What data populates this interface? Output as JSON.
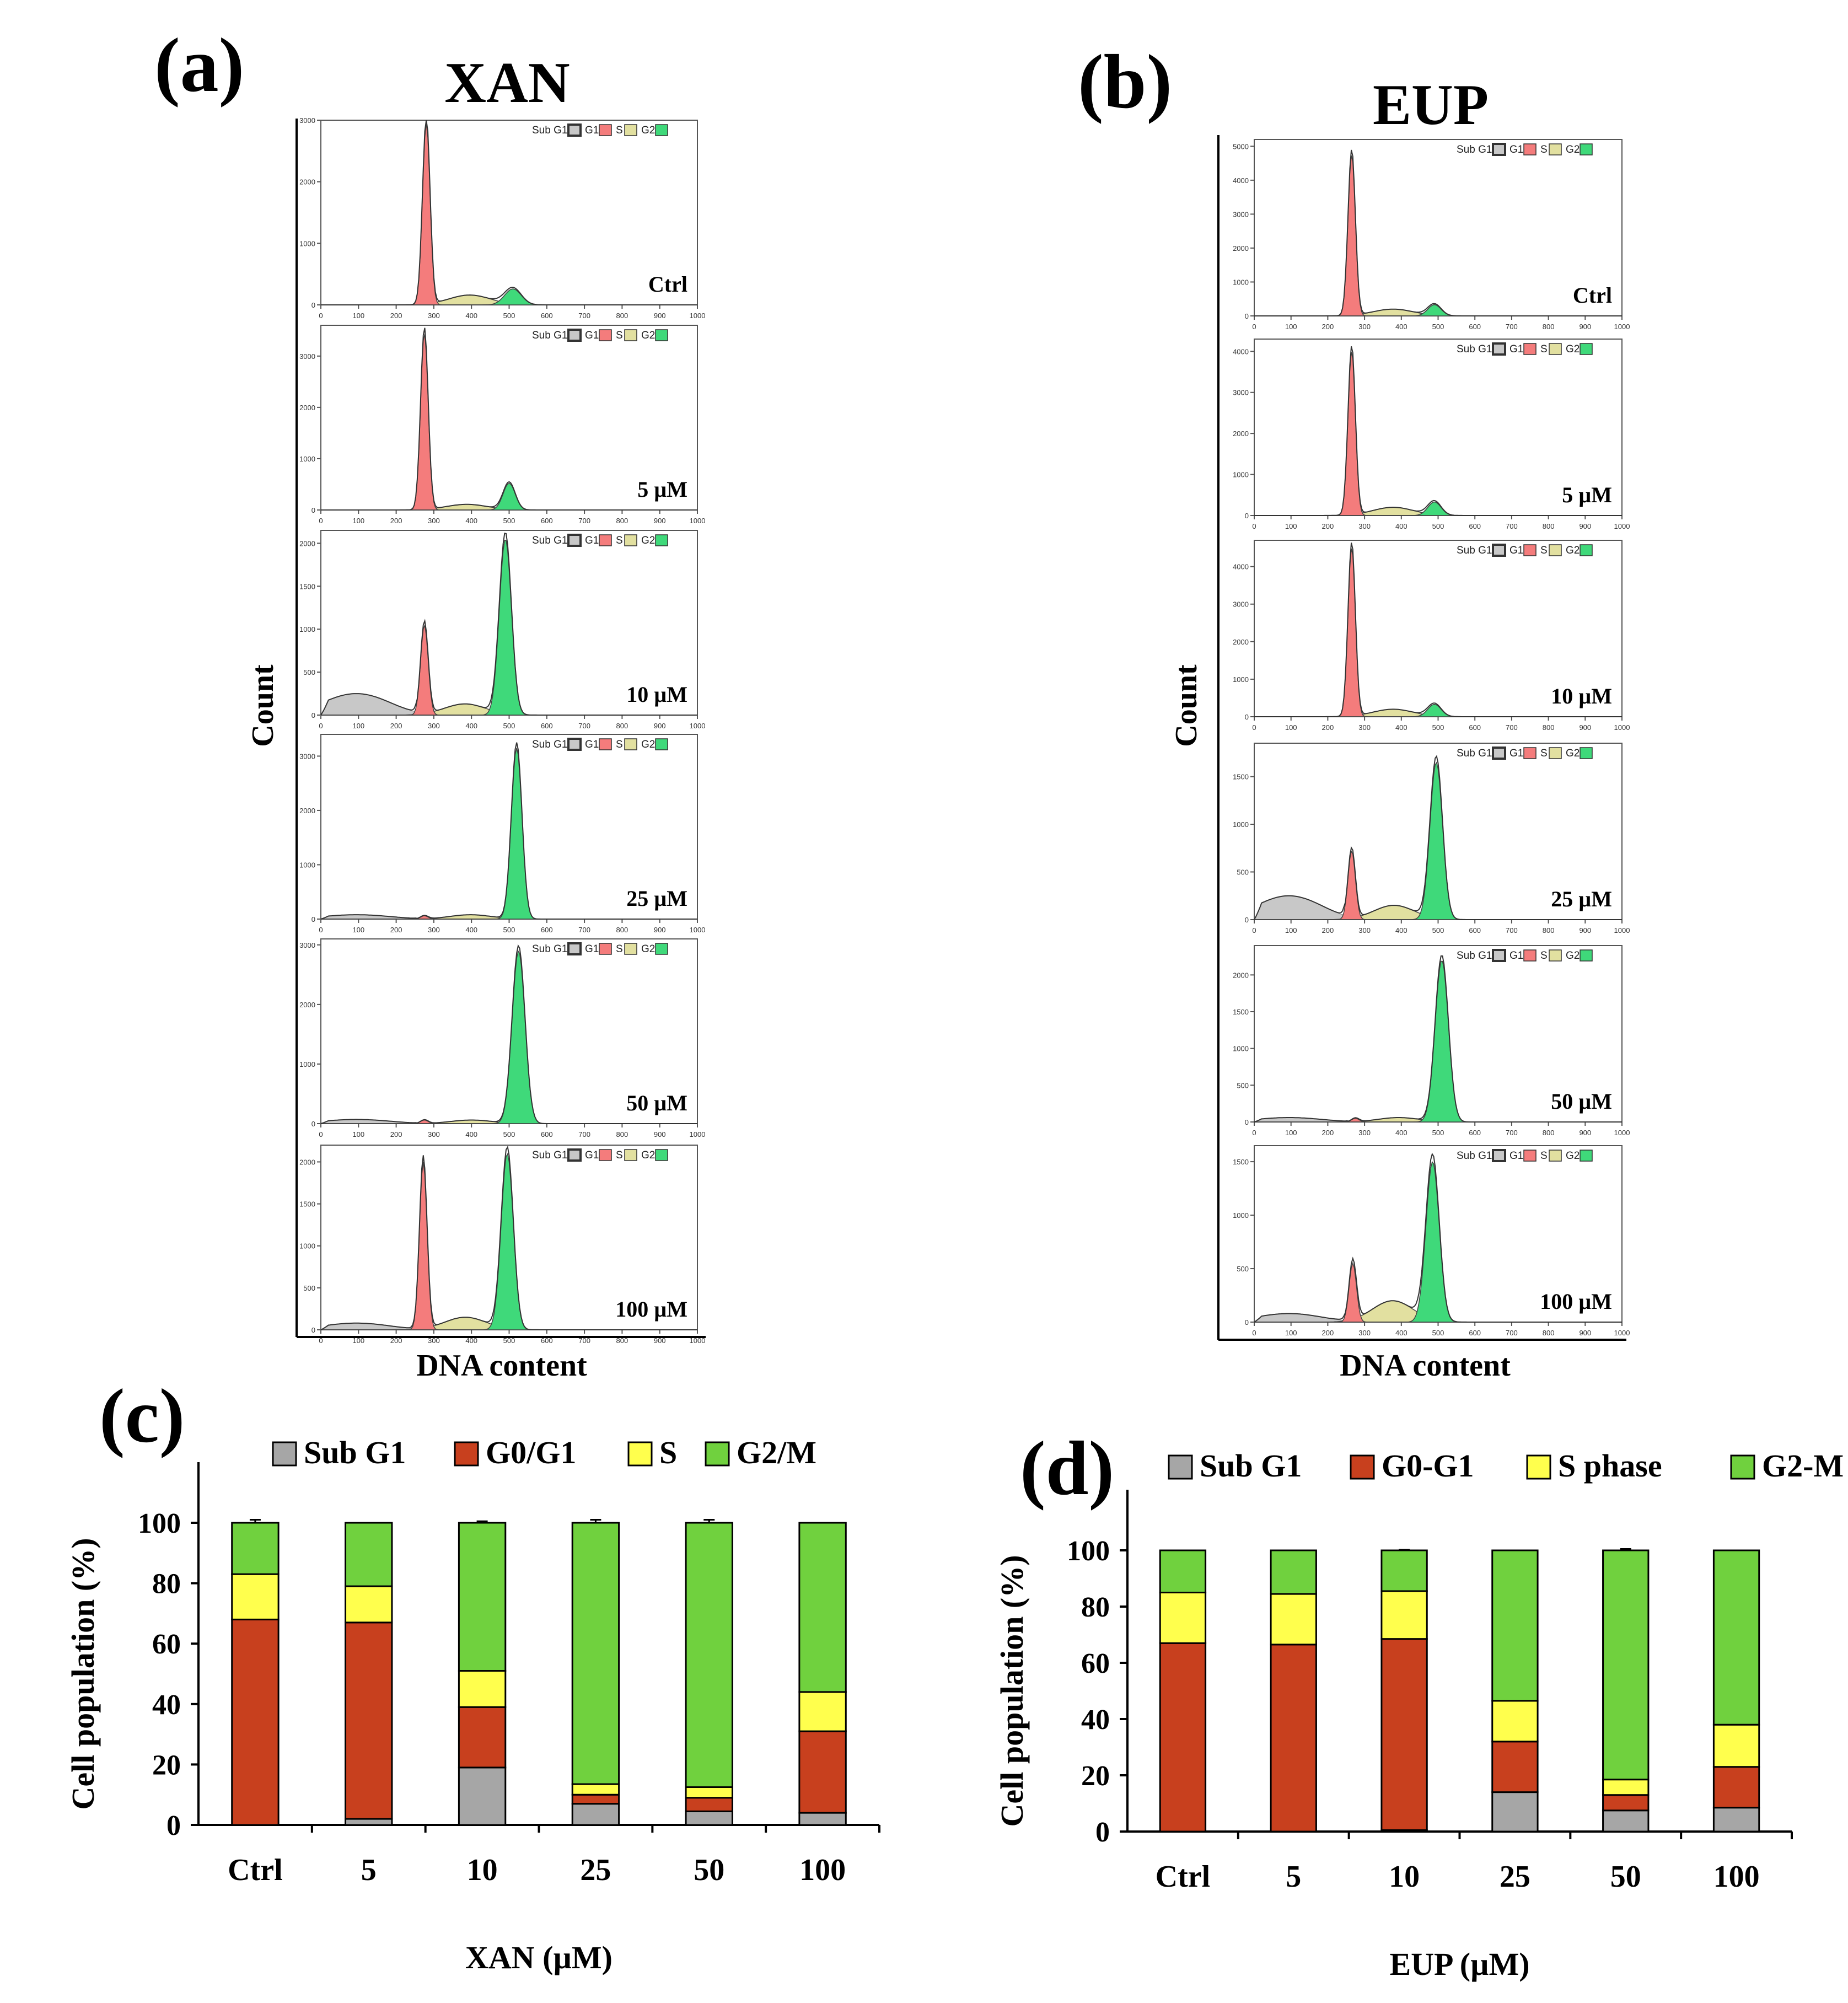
{
  "panels": {
    "a": {
      "letter": "(a)",
      "title": "XAN",
      "ylabel": "Count",
      "xlabel": "DNA content",
      "legend": [
        "Sub G1",
        "G1",
        "S",
        "G2"
      ],
      "x_ticks": [
        "0",
        "100",
        "200",
        "300",
        "400",
        "500",
        "600",
        "700",
        "800",
        "900",
        "1000"
      ],
      "histograms": [
        {
          "label": "Ctrl",
          "y_ticks": [
            "0",
            "1000",
            "2000",
            "3000"
          ],
          "ymax": 3000,
          "g1_peak": 2950,
          "g2_peak": 260,
          "s_level": 160,
          "subg1_level": 0,
          "g1_center": 280,
          "g2_center": 510,
          "g2_sigma": 22
        },
        {
          "label": "5 µM",
          "y_ticks": [
            "0",
            "1000",
            "2000",
            "3000"
          ],
          "ymax": 3600,
          "g1_peak": 3450,
          "g2_peak": 520,
          "s_level": 110,
          "subg1_level": 0,
          "g1_center": 275,
          "g2_center": 500,
          "g2_sigma": 16
        },
        {
          "label": "10 µM",
          "y_ticks": [
            "0",
            "500",
            "1000",
            "1500",
            "2000"
          ],
          "ymax": 2150,
          "g1_peak": 1050,
          "g2_peak": 2050,
          "s_level": 130,
          "subg1_level": 250,
          "g1_center": 275,
          "g2_center": 490,
          "g2_sigma": 16
        },
        {
          "label": "25 µM",
          "y_ticks": [
            "0",
            "1000",
            "2000",
            "3000"
          ],
          "ymax": 3400,
          "g1_peak": 60,
          "g2_peak": 3150,
          "s_level": 80,
          "subg1_level": 80,
          "g1_center": 275,
          "g2_center": 520,
          "g2_sigma": 14
        },
        {
          "label": "50 µM",
          "y_ticks": [
            "0",
            "1000",
            "2000",
            "3000"
          ],
          "ymax": 3100,
          "g1_peak": 60,
          "g2_peak": 2900,
          "s_level": 60,
          "subg1_level": 70,
          "g1_center": 275,
          "g2_center": 525,
          "g2_sigma": 17
        },
        {
          "label": "100 µM",
          "y_ticks": [
            "0",
            "500",
            "1000",
            "1500",
            "2000"
          ],
          "ymax": 2200,
          "g1_peak": 2000,
          "g2_peak": 2100,
          "s_level": 150,
          "subg1_level": 80,
          "g1_center": 272,
          "g2_center": 495,
          "g2_sigma": 16
        }
      ]
    },
    "b": {
      "letter": "(b)",
      "title": "EUP",
      "ylabel": "Count",
      "xlabel": "DNA content",
      "legend": [
        "Sub G1",
        "G1",
        "S",
        "G2"
      ],
      "x_ticks": [
        "0",
        "100",
        "200",
        "300",
        "400",
        "500",
        "600",
        "700",
        "800",
        "900",
        "1000"
      ],
      "histograms": [
        {
          "label": "Ctrl",
          "y_ticks": [
            "0",
            "1000",
            "2000",
            "3000",
            "4000",
            "5000"
          ],
          "ymax": 5200,
          "g1_peak": 4750,
          "g2_peak": 330,
          "s_level": 200,
          "subg1_level": 0,
          "g1_center": 265,
          "g2_center": 490,
          "g2_sigma": 18
        },
        {
          "label": "5 µM",
          "y_ticks": [
            "0",
            "1000",
            "2000",
            "3000",
            "4000"
          ],
          "ymax": 4300,
          "g1_peak": 4000,
          "g2_peak": 330,
          "s_level": 200,
          "subg1_level": 0,
          "g1_center": 265,
          "g2_center": 490,
          "g2_sigma": 18
        },
        {
          "label": "10 µM",
          "y_ticks": [
            "0",
            "1000",
            "2000",
            "3000",
            "4000"
          ],
          "ymax": 4700,
          "g1_peak": 4500,
          "g2_peak": 330,
          "s_level": 200,
          "subg1_level": 0,
          "g1_center": 265,
          "g2_center": 490,
          "g2_sigma": 18
        },
        {
          "label": "25 µM",
          "y_ticks": [
            "0",
            "500",
            "1000",
            "1500"
          ],
          "ymax": 1850,
          "g1_peak": 720,
          "g2_peak": 1650,
          "s_level": 150,
          "subg1_level": 250,
          "g1_center": 265,
          "g2_center": 495,
          "g2_sigma": 17
        },
        {
          "label": "50 µM",
          "y_ticks": [
            "0",
            "500",
            "1000",
            "1500",
            "2000"
          ],
          "ymax": 2400,
          "g1_peak": 50,
          "g2_peak": 2200,
          "s_level": 60,
          "subg1_level": 60,
          "g1_center": 275,
          "g2_center": 510,
          "g2_sigma": 18
        },
        {
          "label": "100 µM",
          "y_ticks": [
            "0",
            "500",
            "1000",
            "1500"
          ],
          "ymax": 1650,
          "g1_peak": 550,
          "g2_peak": 1500,
          "s_level": 200,
          "subg1_level": 80,
          "g1_center": 268,
          "g2_center": 485,
          "g2_sigma": 18
        }
      ]
    },
    "c": {
      "letter": "(c)"
    },
    "d": {
      "letter": "(d)"
    }
  },
  "colors": {
    "subg1": "#a6a6a6",
    "g1_bar": "#c8401e",
    "s_bar": "#ffff4d",
    "g2_bar": "#70d13e",
    "hist_subg1": "#c8c8c8",
    "hist_g1": "#f47c7c",
    "hist_s": "#e2e0a0",
    "hist_g2": "#3fd97a"
  },
  "chart_data": [
    {
      "id": "c",
      "type": "bar",
      "stacked": true,
      "categories": [
        "Ctrl",
        "5",
        "10",
        "25",
        "50",
        "100"
      ],
      "series": [
        {
          "name": "Sub G1",
          "values": [
            0,
            2,
            19,
            7,
            4.5,
            4
          ]
        },
        {
          "name": "G0/G1",
          "values": [
            68,
            65,
            20,
            3,
            4.5,
            27
          ]
        },
        {
          "name": "S",
          "values": [
            15,
            12,
            12,
            3.5,
            3.5,
            13
          ]
        },
        {
          "name": "G2/M",
          "values": [
            17,
            21,
            49,
            86.5,
            87.5,
            56
          ]
        }
      ],
      "error_tops": [
        101,
        100,
        100.5,
        101,
        101,
        100
      ],
      "xlabel": "XAN (µM)",
      "ylabel": "Cell population (%)",
      "ylim": [
        0,
        100
      ],
      "y_ticks": [
        0,
        20,
        40,
        60,
        80,
        100
      ],
      "legend_position": "top"
    },
    {
      "id": "d",
      "type": "bar",
      "stacked": true,
      "categories": [
        "Ctrl",
        "5",
        "10",
        "25",
        "50",
        "100"
      ],
      "series": [
        {
          "name": "Sub G1",
          "values": [
            0,
            0,
            0.5,
            14,
            7.5,
            8.5
          ]
        },
        {
          "name": "G0-G1",
          "values": [
            67,
            66.5,
            68,
            18,
            5.5,
            14.5
          ]
        },
        {
          "name": "S phase",
          "values": [
            18,
            18,
            17,
            14.5,
            5.5,
            15
          ]
        },
        {
          "name": "G2-M",
          "values": [
            15,
            15.5,
            14.5,
            53.5,
            81.5,
            62
          ]
        }
      ],
      "error_tops": [
        100,
        100,
        100.2,
        100,
        100.5,
        100
      ],
      "xlabel": "EUP (µM)",
      "ylabel": "Cell population (%)",
      "ylim": [
        0,
        100
      ],
      "y_ticks": [
        0,
        20,
        40,
        60,
        80,
        100
      ],
      "legend_position": "top"
    }
  ]
}
